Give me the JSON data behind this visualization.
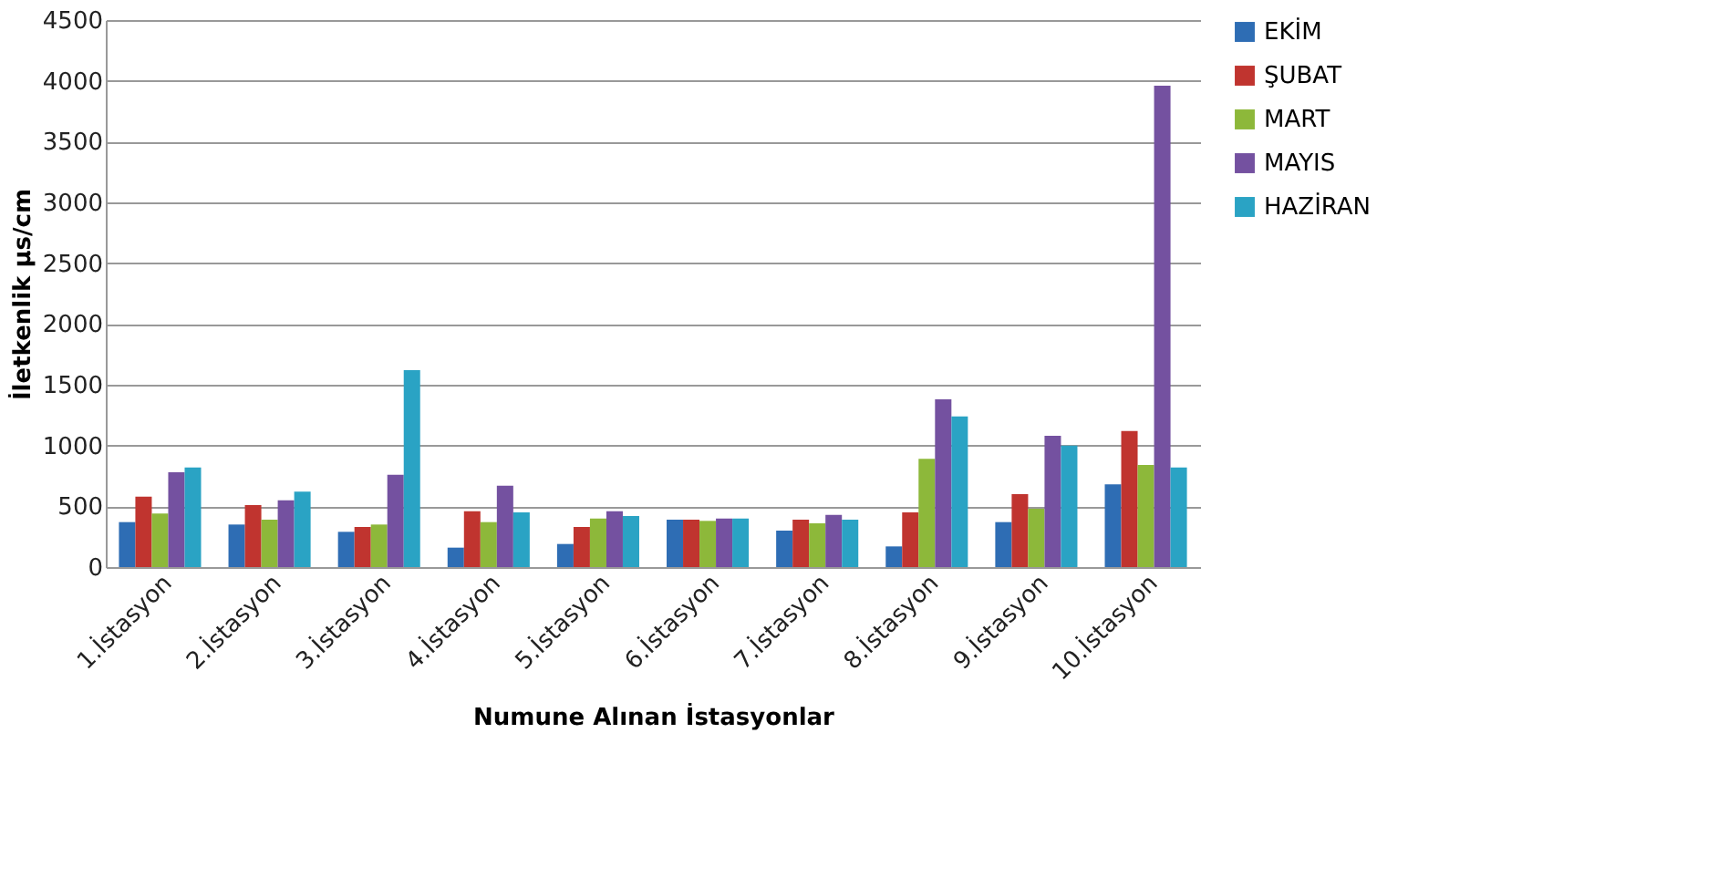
{
  "chart_data": {
    "type": "bar",
    "xlabel": "Numune Alınan  İstasyonlar",
    "ylabel": "İletkenlik µs/cm",
    "categories": [
      "1.İstasyon",
      "2.İstasyon",
      "3.İstasyon",
      "4.İstasyon",
      "5.İstasyon",
      "6.İstasyon",
      "7.İstasyon",
      "8.İstasyon",
      "9.İstasyon",
      "10.İstasyon"
    ],
    "series": [
      {
        "name": "EKİM",
        "color": "#2e6db4",
        "values": [
          370,
          350,
          290,
          160,
          190,
          390,
          300,
          170,
          370,
          680
        ]
      },
      {
        "name": "ŞUBAT",
        "color": "#c0342f",
        "values": [
          580,
          510,
          330,
          460,
          330,
          390,
          390,
          450,
          600,
          1120
        ]
      },
      {
        "name": "MART",
        "color": "#8db83a",
        "values": [
          440,
          390,
          350,
          370,
          400,
          380,
          360,
          890,
          480,
          840
        ]
      },
      {
        "name": "MAYIS",
        "color": "#7451a0",
        "values": [
          780,
          550,
          760,
          670,
          460,
          400,
          430,
          1380,
          1080,
          3960
        ]
      },
      {
        "name": "HAZİRAN",
        "color": "#2aa3c4",
        "values": [
          820,
          620,
          1620,
          450,
          420,
          400,
          390,
          1240,
          1000,
          820
        ]
      }
    ],
    "ylim": [
      0,
      4500
    ],
    "yticks": [
      0,
      500,
      1000,
      1500,
      2000,
      2500,
      3000,
      3500,
      4000,
      4500
    ],
    "grid": "y",
    "legend": "right"
  }
}
